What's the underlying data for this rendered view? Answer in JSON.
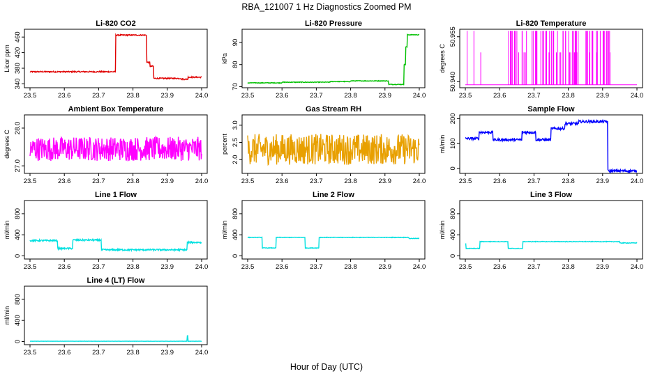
{
  "figure": {
    "title": "RBA_121007  1 Hz Diagnostics Zoomed PM",
    "xlabel": "Hour of Day (UTC)"
  },
  "chart_data": [
    {
      "type": "line",
      "title": "Li-820 CO2",
      "ylabel": "Licor ppm",
      "color": "#e00000",
      "xlim": [
        23.5,
        24.0
      ],
      "ylim": [
        330,
        480
      ],
      "yticks": [
        340,
        380,
        420,
        460
      ],
      "xticks": [
        23.5,
        23.6,
        23.7,
        23.8,
        23.9,
        24.0
      ],
      "xtick_labels": [
        "23.5",
        "23.6",
        "23.7",
        "23.8",
        "23.9",
        "24.0"
      ],
      "noise": 1.5,
      "segments": [
        [
          23.5,
          23.75,
          371
        ],
        [
          23.75,
          23.84,
          465
        ],
        [
          23.84,
          23.85,
          395
        ],
        [
          23.85,
          23.86,
          385
        ],
        [
          23.86,
          23.94,
          354
        ],
        [
          23.94,
          23.96,
          352
        ],
        [
          23.96,
          24.0,
          357
        ]
      ]
    },
    {
      "type": "line",
      "title": "Li-820 Pressure",
      "ylabel": "kPa",
      "color": "#00c000",
      "xlim": [
        23.5,
        24.0
      ],
      "ylim": [
        69.5,
        96
      ],
      "yticks": [
        70,
        80,
        90
      ],
      "xticks": [
        23.5,
        23.6,
        23.7,
        23.8,
        23.9,
        24.0
      ],
      "xtick_labels": [
        "23.5",
        "23.6",
        "23.7",
        "23.8",
        "23.9",
        "24.0"
      ],
      "noise": 0.15,
      "segments": [
        [
          23.5,
          23.6,
          71.7
        ],
        [
          23.6,
          23.74,
          72
        ],
        [
          23.74,
          23.8,
          72.3
        ],
        [
          23.8,
          23.91,
          72.6
        ],
        [
          23.91,
          23.955,
          71
        ],
        [
          23.955,
          23.96,
          80
        ],
        [
          23.96,
          23.965,
          88
        ],
        [
          23.965,
          24.0,
          93.5
        ]
      ]
    },
    {
      "type": "line",
      "title": "Li-820 Temperature",
      "ylabel": "degrees C",
      "color": "#ff00ff",
      "xlim": [
        23.5,
        24.0
      ],
      "ylim": [
        50.938,
        50.9575
      ],
      "yticks": [
        50.94,
        50.955
      ],
      "ytick_labels": [
        "50.940",
        "50.955"
      ],
      "xticks": [
        23.5,
        23.6,
        23.7,
        23.8,
        23.9,
        24.0
      ],
      "xtick_labels": [
        "23.5",
        "23.6",
        "23.7",
        "23.8",
        "23.9",
        "24.0"
      ],
      "render": "spikes",
      "base": 50.939,
      "spikeTop": 50.957,
      "spikeCount": 80
    },
    {
      "type": "line",
      "title": "Ambient Box Temperature",
      "ylabel": "degrees C",
      "color": "#ff00ff",
      "xlim": [
        23.5,
        24.0
      ],
      "ylim": [
        26.8,
        28.35
      ],
      "yticks": [
        27.0,
        28.0
      ],
      "ytick_labels": [
        "27.0",
        "28.0"
      ],
      "xticks": [
        23.5,
        23.6,
        23.7,
        23.8,
        23.9,
        24.0
      ],
      "xtick_labels": [
        "23.5",
        "23.6",
        "23.7",
        "23.8",
        "23.9",
        "24.0"
      ],
      "noise": 0.32,
      "segments": [
        [
          23.5,
          24.0,
          27.45
        ]
      ]
    },
    {
      "type": "line",
      "title": "Gas Stream RH",
      "ylabel": "percent",
      "color": "#e8a000",
      "xlim": [
        23.5,
        24.0
      ],
      "ylim": [
        1.6,
        3.3
      ],
      "yticks": [
        2.0,
        2.5,
        3.0
      ],
      "ytick_labels": [
        "2.0",
        "2.5",
        "3.0"
      ],
      "xticks": [
        23.5,
        23.6,
        23.7,
        23.8,
        23.9,
        24.0
      ],
      "xtick_labels": [
        "23.5",
        "23.6",
        "23.7",
        "23.8",
        "23.9",
        "24.0"
      ],
      "noise": 0.45,
      "segments": [
        [
          23.5,
          24.0,
          2.3
        ]
      ]
    },
    {
      "type": "line",
      "title": "Sample Flow",
      "ylabel": "ml/min",
      "color": "#0000ff",
      "xlim": [
        23.5,
        24.0
      ],
      "ylim": [
        -20,
        215
      ],
      "yticks": [
        0,
        100,
        200
      ],
      "xticks": [
        23.5,
        23.6,
        23.7,
        23.8,
        23.9,
        24.0
      ],
      "xtick_labels": [
        "23.5",
        "23.6",
        "23.7",
        "23.8",
        "23.9",
        "24.0"
      ],
      "noise": 5,
      "segments": [
        [
          23.5,
          23.54,
          120
        ],
        [
          23.54,
          23.58,
          145
        ],
        [
          23.58,
          23.665,
          115
        ],
        [
          23.665,
          23.705,
          145
        ],
        [
          23.705,
          23.75,
          115
        ],
        [
          23.75,
          23.79,
          160
        ],
        [
          23.79,
          23.83,
          180
        ],
        [
          23.83,
          23.915,
          188
        ],
        [
          23.915,
          24.0,
          -10
        ]
      ]
    },
    {
      "type": "line",
      "title": "Line 1 Flow",
      "ylabel": "ml/min",
      "color": "#00e0e0",
      "xlim": [
        23.5,
        24.0
      ],
      "ylim": [
        -60,
        1050
      ],
      "yticks": [
        0,
        400,
        800
      ],
      "xticks": [
        23.5,
        23.6,
        23.7,
        23.8,
        23.9,
        24.0
      ],
      "xtick_labels": [
        "23.5",
        "23.6",
        "23.7",
        "23.8",
        "23.9",
        "24.0"
      ],
      "noise": 15,
      "segments": [
        [
          23.5,
          23.58,
          290
        ],
        [
          23.58,
          23.625,
          140
        ],
        [
          23.625,
          23.708,
          300
        ],
        [
          23.708,
          23.958,
          115
        ],
        [
          23.958,
          24.0,
          255
        ]
      ]
    },
    {
      "type": "line",
      "title": "Line 2 Flow",
      "ylabel": "ml/min",
      "color": "#00e0e0",
      "xlim": [
        23.5,
        24.0
      ],
      "ylim": [
        -60,
        1050
      ],
      "yticks": [
        0,
        400,
        800
      ],
      "xticks": [
        23.5,
        23.6,
        23.7,
        23.8,
        23.9,
        24.0
      ],
      "xtick_labels": [
        "23.5",
        "23.6",
        "23.7",
        "23.8",
        "23.9",
        "24.0"
      ],
      "noise": 5,
      "segments": [
        [
          23.5,
          23.542,
          350
        ],
        [
          23.542,
          23.583,
          150
        ],
        [
          23.583,
          23.667,
          350
        ],
        [
          23.667,
          23.708,
          150
        ],
        [
          23.708,
          23.97,
          350
        ],
        [
          23.97,
          24.0,
          330
        ]
      ]
    },
    {
      "type": "line",
      "title": "Line 3 Flow",
      "ylabel": "ml/min",
      "color": "#00e0e0",
      "xlim": [
        23.5,
        24.0
      ],
      "ylim": [
        -60,
        1050
      ],
      "yticks": [
        0,
        400,
        800
      ],
      "xticks": [
        23.5,
        23.6,
        23.7,
        23.8,
        23.9,
        24.0
      ],
      "xtick_labels": [
        "23.5",
        "23.6",
        "23.7",
        "23.8",
        "23.9",
        "24.0"
      ],
      "noise": 6,
      "segments": [
        [
          23.5,
          23.502,
          230
        ],
        [
          23.502,
          23.542,
          140
        ],
        [
          23.542,
          23.625,
          270
        ],
        [
          23.625,
          23.667,
          140
        ],
        [
          23.667,
          23.95,
          270
        ],
        [
          23.95,
          24.0,
          245
        ]
      ]
    },
    {
      "type": "line",
      "title": "Line 4 (LT) Flow",
      "ylabel": "ml/min",
      "color": "#00e0e0",
      "xlim": [
        23.5,
        24.0
      ],
      "ylim": [
        -60,
        1050
      ],
      "yticks": [
        0,
        400,
        800
      ],
      "xticks": [
        23.5,
        23.6,
        23.7,
        23.8,
        23.9,
        24.0
      ],
      "xtick_labels": [
        "23.5",
        "23.6",
        "23.7",
        "23.8",
        "23.9",
        "24.0"
      ],
      "noise": 2,
      "segments": [
        [
          23.5,
          23.958,
          5
        ],
        [
          23.958,
          23.96,
          110
        ],
        [
          23.96,
          24.0,
          5
        ]
      ]
    }
  ]
}
